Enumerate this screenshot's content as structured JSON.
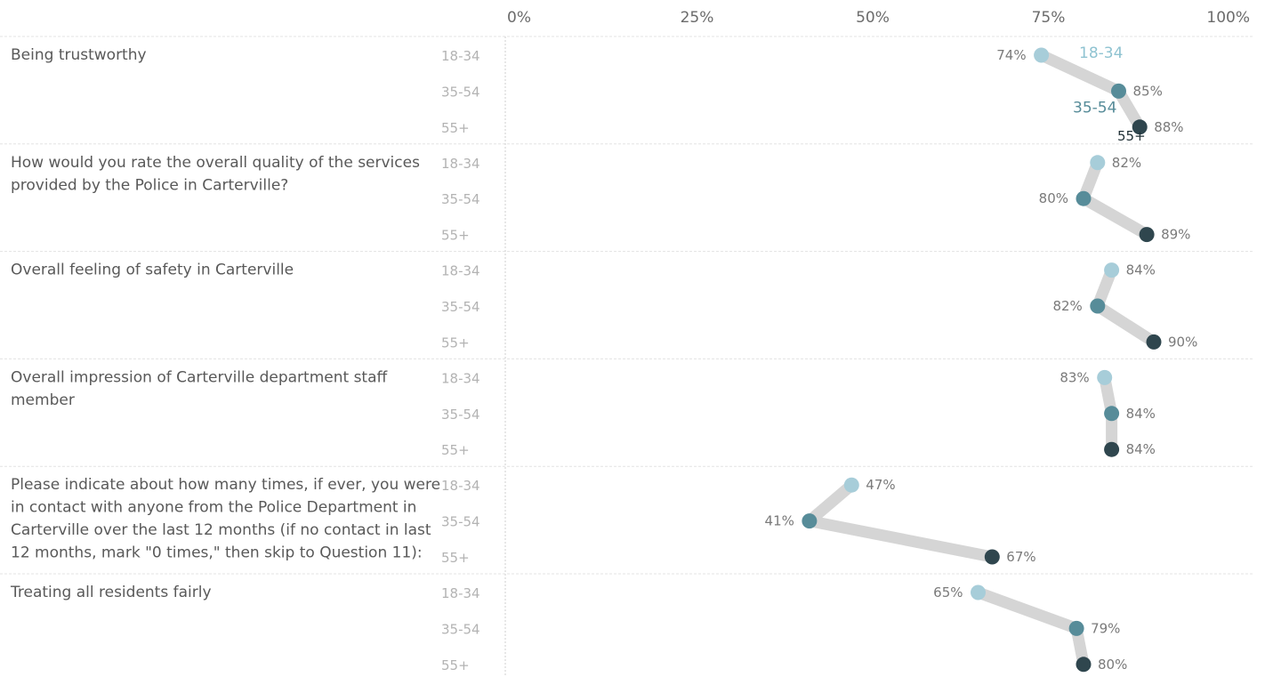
{
  "chart_data": {
    "type": "dot-connector",
    "x_axis": {
      "min": 0,
      "max": 100,
      "tick_labels": [
        "0%",
        "25%",
        "50%",
        "75%",
        "100%"
      ]
    },
    "age_groups": [
      "18-34",
      "35-54",
      "55+"
    ],
    "series_colors": {
      "18-34": "#a7cdd9",
      "35-54": "#578c99",
      "55+": "#2f464e"
    },
    "connector_color": "#d5d5d5",
    "legend": [
      {
        "name": "18-34",
        "color": "#8fc3d1"
      },
      {
        "name": "35-54",
        "color": "#578c99"
      },
      {
        "name": "55+",
        "color": "#1f2f35"
      }
    ],
    "questions": [
      {
        "lines": [
          "Being trustworthy"
        ],
        "values": [
          74,
          85,
          88
        ]
      },
      {
        "lines": [
          "How would you rate the overall quality of the services",
          "provided by the Police in Carterville?"
        ],
        "values": [
          82,
          80,
          89
        ]
      },
      {
        "lines": [
          "Overall feeling of safety in Carterville"
        ],
        "values": [
          84,
          82,
          90
        ]
      },
      {
        "lines": [
          "Overall impression of Carterville department staff",
          "member"
        ],
        "values": [
          83,
          84,
          84
        ]
      },
      {
        "lines": [
          "Please indicate about how many times, if ever, you were",
          "in contact with anyone from the Police Department in",
          "Carterville over the last 12 months (if no contact in last",
          "12 months, mark \"0 times,\" then skip to Question 11):"
        ],
        "values": [
          47,
          41,
          67
        ]
      },
      {
        "lines": [
          "Treating all residents fairly"
        ],
        "values": [
          65,
          79,
          80
        ]
      }
    ]
  }
}
